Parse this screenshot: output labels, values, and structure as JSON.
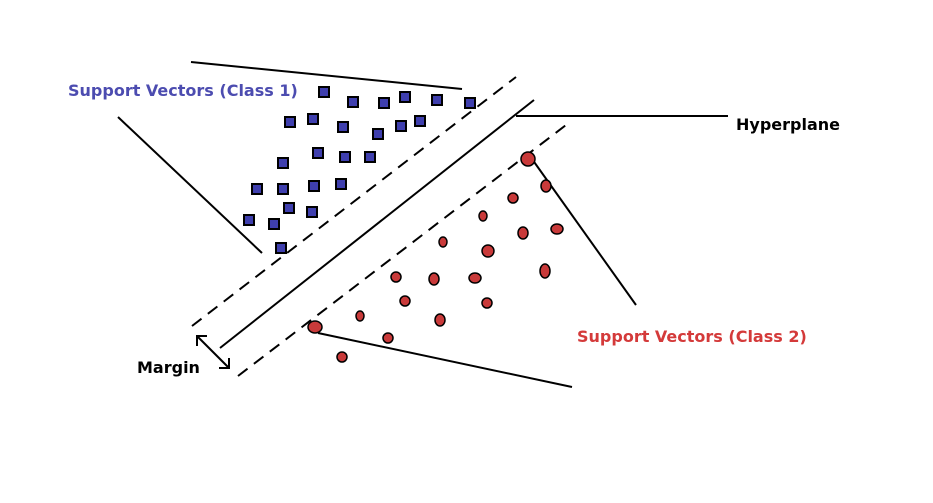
{
  "labels": {
    "class1": "Support Vectors (Class 1)",
    "class2": "Support Vectors (Class 2)",
    "hyperplane": "Hyperplane",
    "margin": "Margin"
  },
  "colors": {
    "class1_text": "#4c4cb0",
    "class2_text": "#d43a3a",
    "square_fill": "#3f3fae",
    "circle_fill": "#c93a3a",
    "stroke": "#000000"
  },
  "icons": {
    "class1_point": "square-icon",
    "class2_point": "circle-icon",
    "margin_arrow": "double-arrow-icon"
  }
}
